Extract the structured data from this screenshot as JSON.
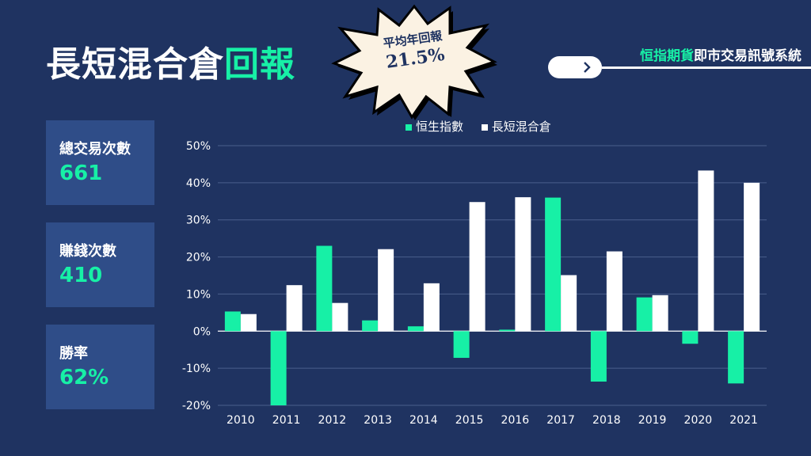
{
  "title": {
    "main": "長短混合倉",
    "accent": "回報"
  },
  "badge": {
    "label": "平均年回報",
    "value": "21.5%"
  },
  "brand": {
    "accent": "恒指期貨",
    "rest": "即市交易訊號系統"
  },
  "stats": [
    {
      "label": "總交易次數",
      "value": "661"
    },
    {
      "label": "賺錢次數",
      "value": "410"
    },
    {
      "label": "勝率",
      "value": "62%"
    }
  ],
  "colors": {
    "background": "#1f3361",
    "accent": "#17f0a6",
    "panel": "#2f4d88",
    "white": "#ffffff"
  },
  "chart_data": {
    "type": "bar",
    "categories": [
      "2010",
      "2011",
      "2012",
      "2013",
      "2014",
      "2015",
      "2016",
      "2017",
      "2018",
      "2019",
      "2020",
      "2021"
    ],
    "series": [
      {
        "name": "恒生指數",
        "color": "#17f0a6",
        "values": [
          5.3,
          -20,
          23,
          2.9,
          1.3,
          -7.2,
          0.4,
          36,
          -13.6,
          9.1,
          -3.4,
          -14.1
        ]
      },
      {
        "name": "長短混合倉",
        "color": "#ffffff",
        "values": [
          4.6,
          12.4,
          7.6,
          22.1,
          12.9,
          34.8,
          36.1,
          15.1,
          21.5,
          9.7,
          43.3,
          40
        ]
      }
    ],
    "ylim": [
      -20,
      50
    ],
    "yticks": [
      -20,
      -10,
      0,
      10,
      20,
      30,
      40,
      50
    ],
    "ytick_labels": [
      "-20%",
      "-10%",
      "0%",
      "10%",
      "20%",
      "30%",
      "40%",
      "50%"
    ],
    "grid": true,
    "legend_position": "top"
  }
}
